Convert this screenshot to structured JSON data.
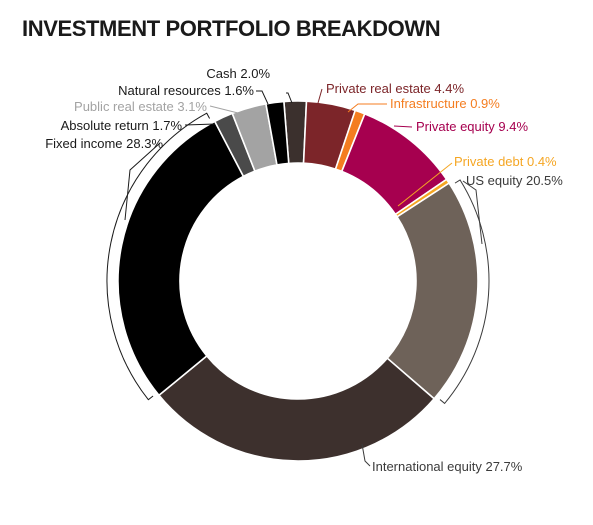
{
  "chart_data": {
    "type": "pie",
    "donut": true,
    "title": "INVESTMENT PORTFOLIO BREAKDOWN",
    "unit": "%",
    "slices": [
      {
        "name": "Cash",
        "value": 2.0,
        "label": "Cash 2.0%",
        "color": "#3b302d"
      },
      {
        "name": "Private real estate",
        "value": 4.4,
        "label": "Private real estate 4.4%",
        "color": "#7c2529"
      },
      {
        "name": "Infrastructure",
        "value": 0.9,
        "label": "Infrastructure 0.9%",
        "color": "#f47d20"
      },
      {
        "name": "Private equity",
        "value": 9.4,
        "label": "Private equity 9.4%",
        "color": "#a6004f"
      },
      {
        "name": "Private debt",
        "value": 0.4,
        "label": "Private debt 0.4%",
        "color": "#f5a623"
      },
      {
        "name": "US equity",
        "value": 20.5,
        "label": "US equity 20.5%",
        "color": "#6e6259"
      },
      {
        "name": "International equity",
        "value": 27.7,
        "label": "International equity 27.7%",
        "color": "#3d302d"
      },
      {
        "name": "Fixed income",
        "value": 28.3,
        "label": "Fixed income 28.3%",
        "color": "#000000"
      },
      {
        "name": "Absolute return",
        "value": 1.7,
        "label": "Absolute return 1.7%",
        "color": "#4a4a4a"
      },
      {
        "name": "Public real estate",
        "value": 3.1,
        "label": "Public real estate 3.1%",
        "color": "#a3a3a3"
      },
      {
        "name": "Natural resources",
        "value": 1.6,
        "label": "Natural resources 1.6%",
        "color": "#000000"
      }
    ],
    "label_colors": {
      "Cash": "#1a1a1a",
      "Private real estate": "#7c2529",
      "Infrastructure": "#f47d20",
      "Private equity": "#a6004f",
      "Private debt": "#f5a623",
      "US equity": "#3b3b3b",
      "International equity": "#3b3b3b",
      "Fixed income": "#1a1a1a",
      "Absolute return": "#1a1a1a",
      "Public real estate": "#a3a3a3",
      "Natural resources": "#1a1a1a"
    }
  }
}
